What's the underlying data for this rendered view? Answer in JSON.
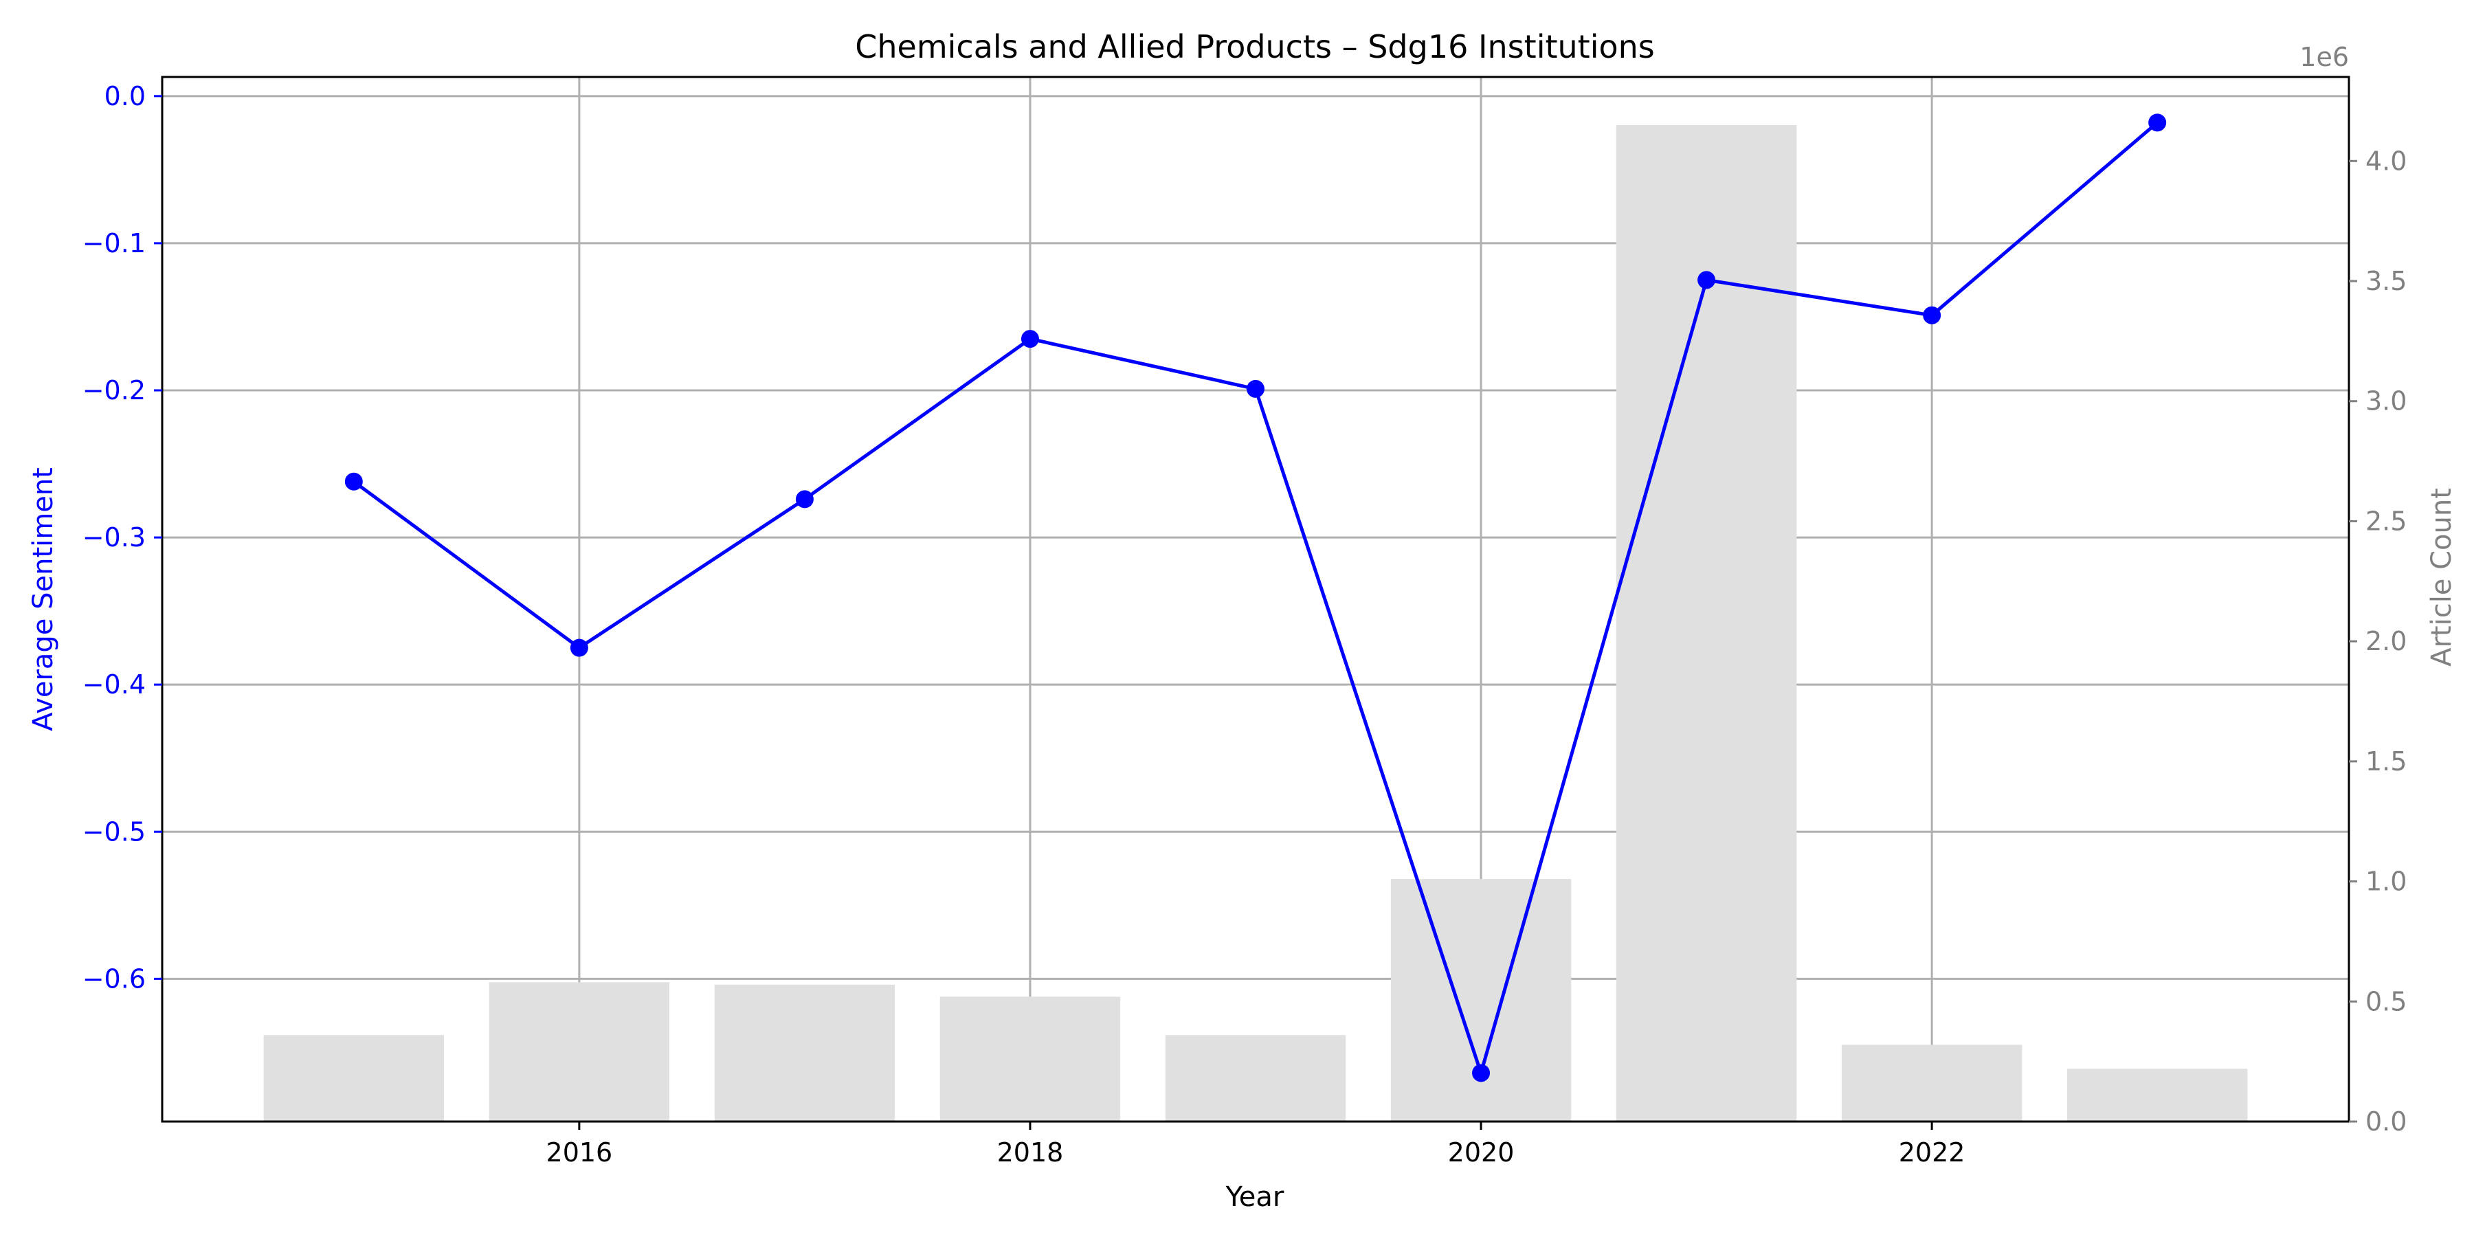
{
  "chart_data": {
    "type": "bar+line",
    "title": "Chemicals and Allied Products – Sdg16 Institutions",
    "xlabel": "Year",
    "ylabel_left": "Average Sentiment",
    "ylabel_right": "Article Count",
    "right_axis_offset_label": "1e6",
    "x": [
      2015,
      2016,
      2017,
      2018,
      2019,
      2020,
      2021,
      2022,
      2023
    ],
    "x_ticks": [
      2016,
      2018,
      2020,
      2022
    ],
    "xlim": [
      2014.15,
      2023.85
    ],
    "ylim_left": [
      -0.697,
      0.013
    ],
    "yticks_left": [
      0.0,
      -0.1,
      -0.2,
      -0.3,
      -0.4,
      -0.5,
      -0.6
    ],
    "ytick_labels_left": [
      "0.0",
      "−0.1",
      "−0.2",
      "−0.3",
      "−0.4",
      "−0.5",
      "−0.6"
    ],
    "ylim_right": [
      0,
      4.35
    ],
    "yticks_right": [
      0.0,
      0.5,
      1.0,
      1.5,
      2.0,
      2.5,
      3.0,
      3.5,
      4.0
    ],
    "ytick_labels_right": [
      "0.0",
      "0.5",
      "1.0",
      "1.5",
      "2.0",
      "2.5",
      "3.0",
      "3.5",
      "4.0"
    ],
    "grid": true,
    "series": [
      {
        "kind": "bar",
        "axis": "right",
        "color": "#e0e0e0",
        "values": [
          0.36,
          0.58,
          0.57,
          0.52,
          0.36,
          1.01,
          4.15,
          0.32,
          0.22
        ]
      },
      {
        "kind": "line",
        "axis": "left",
        "color": "#0000ff",
        "values": [
          -0.262,
          -0.375,
          -0.274,
          -0.165,
          -0.199,
          -0.664,
          -0.125,
          -0.149,
          -0.018
        ]
      }
    ]
  }
}
